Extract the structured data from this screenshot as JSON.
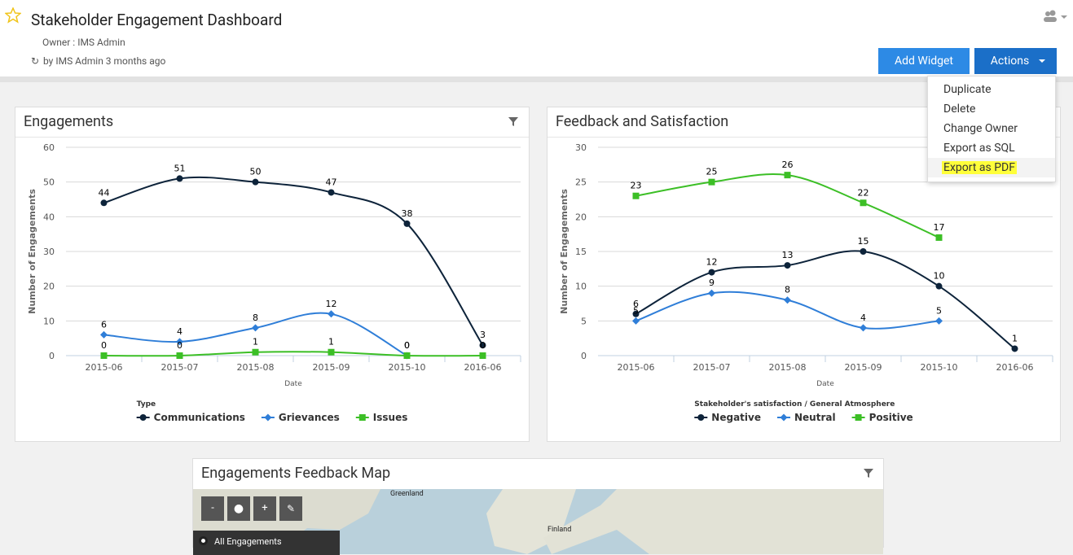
{
  "header": {
    "title": "Stakeholder Engagement Dashboard",
    "owner": "Owner : IMS Admin",
    "updated": "by IMS Admin 3 months ago"
  },
  "buttons": {
    "add": "Add Widget",
    "actions": "Actions"
  },
  "actions_menu": [
    "Duplicate",
    "Delete",
    "Change Owner",
    "Export as SQL",
    "Export as PDF"
  ],
  "widgets": [
    {
      "title": "Engagements",
      "chart": {
        "type": "line",
        "xlabel": "Date",
        "ylabel": "Number of Engagements",
        "legend_title": "Type",
        "categories": [
          "2015-06",
          "2015-07",
          "2015-08",
          "2015-09",
          "2015-10",
          "2016-06"
        ],
        "series": [
          {
            "name": "Communications",
            "color": "#0d233a",
            "values": [
              44,
              51,
              50,
              47,
              38,
              3
            ]
          },
          {
            "name": "Grievances",
            "color": "#2f7ed8",
            "values": [
              6,
              4,
              8,
              12,
              0,
              null
            ]
          },
          {
            "name": "Issues",
            "color": "#3cbf26",
            "values": [
              0,
              0,
              1,
              1,
              0,
              0
            ]
          }
        ],
        "ylim": [
          0,
          60
        ],
        "yticks": [
          0,
          10,
          20,
          30,
          40,
          50,
          60
        ],
        "grid": true
      }
    },
    {
      "title": "Feedback and Satisfaction",
      "chart": {
        "type": "line",
        "xlabel": "Date",
        "ylabel": "Number of Engagements",
        "legend_title": "Stakeholder's satisfaction / General Atmosphere",
        "categories": [
          "2015-06",
          "2015-07",
          "2015-08",
          "2015-09",
          "2015-10",
          "2016-06"
        ],
        "series": [
          {
            "name": "Negative",
            "color": "#0d233a",
            "values": [
              6,
              12,
              13,
              15,
              10,
              1
            ]
          },
          {
            "name": "Neutral",
            "color": "#2f7ed8",
            "values": [
              5,
              9,
              8,
              4,
              5,
              null
            ]
          },
          {
            "name": "Positive",
            "color": "#3cbf26",
            "values": [
              23,
              25,
              26,
              22,
              17,
              null
            ]
          }
        ],
        "ylim": [
          0,
          30
        ],
        "yticks": [
          0,
          5,
          10,
          15,
          20,
          25,
          30
        ],
        "grid": true
      }
    },
    {
      "title": "Engagements Feedback Map",
      "map": {
        "places": [
          "Greenland",
          "Finland"
        ],
        "controls": [
          "-",
          "+"
        ],
        "layer": "All Engagements"
      }
    }
  ]
}
